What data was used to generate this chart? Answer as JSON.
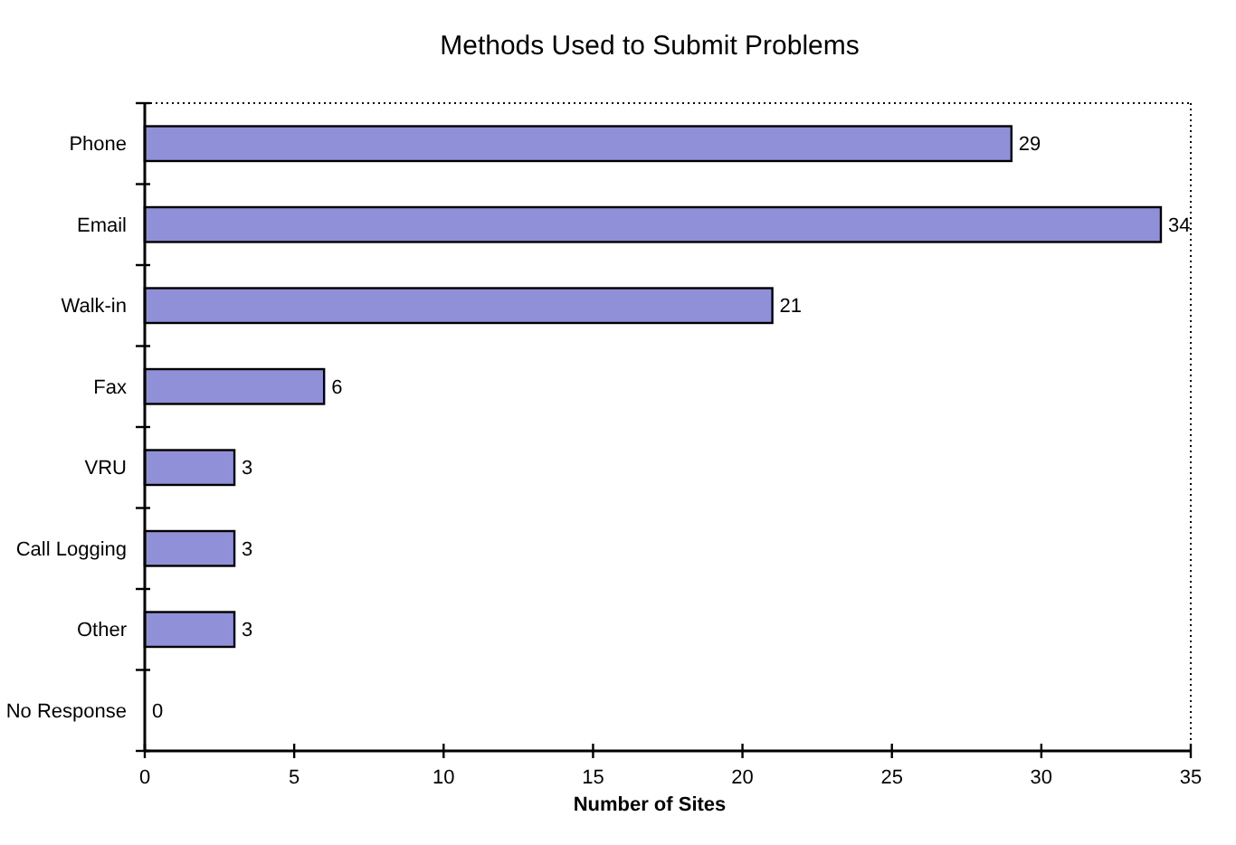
{
  "chart_data": {
    "type": "bar",
    "orientation": "horizontal",
    "title": "Methods Used to Submit Problems",
    "xlabel": "Number of Sites",
    "categories": [
      "Phone",
      "Email",
      "Walk-in",
      "Fax",
      "VRU",
      "Call Logging",
      "Other",
      "No Response"
    ],
    "values": [
      29,
      34,
      21,
      6,
      3,
      3,
      3,
      0
    ],
    "color": "#9090d8",
    "xlim": [
      0,
      35
    ],
    "xticks": [
      0,
      5,
      10,
      15,
      20,
      25,
      30,
      35
    ],
    "grid": false,
    "data_labels": true
  }
}
